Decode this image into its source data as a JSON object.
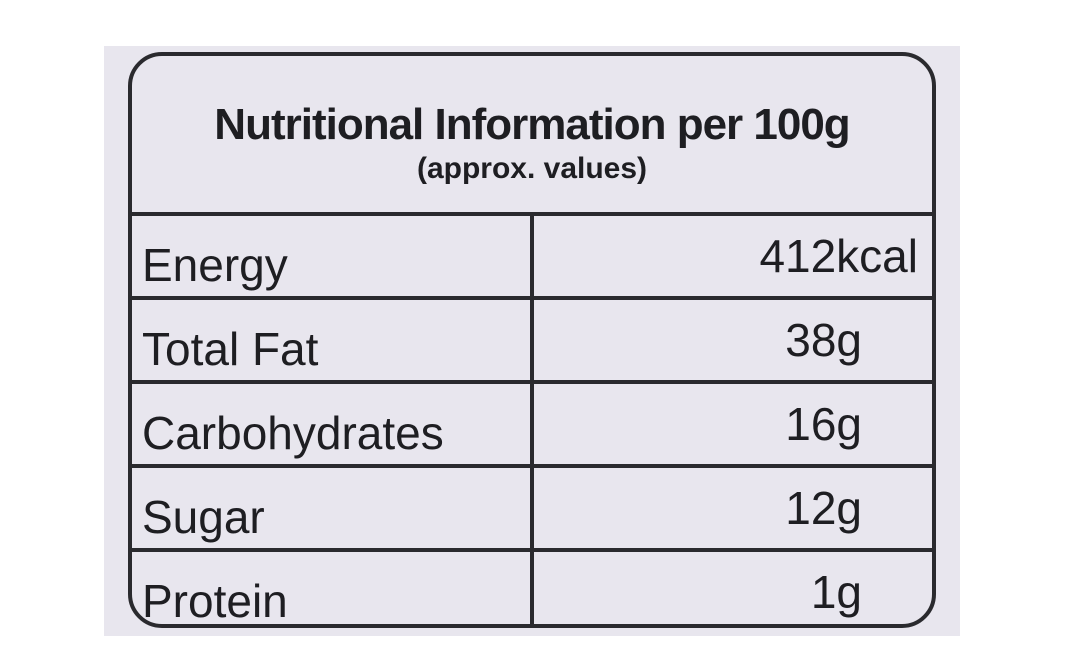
{
  "header": {
    "title": "Nutritional Information per 100g",
    "subtitle": "(approx. values)"
  },
  "table": {
    "rows": [
      [
        "Energy",
        "412kcal"
      ],
      [
        "Total Fat",
        "38g"
      ],
      [
        "Carbohydrates",
        "16g"
      ],
      [
        "Sugar",
        "12g"
      ],
      [
        "Protein",
        "1g"
      ]
    ]
  }
}
